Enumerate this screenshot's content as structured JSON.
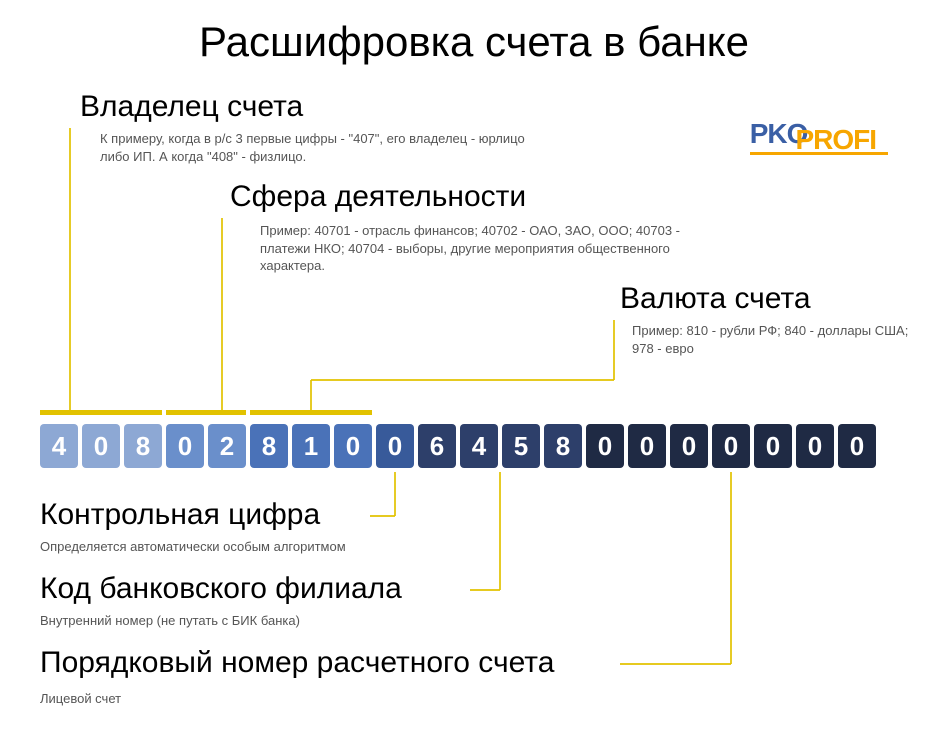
{
  "title": "Расшифровка счета в банке",
  "logo": {
    "part1": "PKO",
    "part2": "PROFI"
  },
  "sections": {
    "owner": {
      "heading": "Владелец счета",
      "desc": "К примеру, когда в р/с 3 первые цифры - \"407\", его владелец - юрлицо либо ИП. А когда \"408\" - физлицо."
    },
    "activity": {
      "heading": "Сфера деятельности",
      "desc": "Пример: 40701 - отрасль финансов; 40702 - ОАО, ЗАО, ООО; 40703 - платежи НКО; 40704 - выборы, другие мероприятия общественного характера."
    },
    "currency": {
      "heading": "Валюта счета",
      "desc": "Пример: 810 - рубли РФ; 840 - доллары США; 978 - евро"
    },
    "control": {
      "heading": "Контрольная цифра",
      "desc": "Определяется автоматически особым алгоритмом"
    },
    "branch": {
      "heading": "Код банковского филиала",
      "desc": "Внутренний номер (не путать с БИК банка)"
    },
    "serial": {
      "heading": "Порядковый номер расчетного счета",
      "desc": "Лицевой счет"
    }
  },
  "digits": [
    "4",
    "0",
    "8",
    "0",
    "2",
    "8",
    "1",
    "0",
    "0",
    "6",
    "4",
    "5",
    "8",
    "0",
    "0",
    "0",
    "0",
    "0",
    "0",
    "0"
  ],
  "colors": {
    "group1": "#8da8d4",
    "group2": "#6a8fcb",
    "group3": "#4a72b8",
    "group4": "#385a9a",
    "group5": "#2d3f6a",
    "group6": "#1f2a44",
    "accent": "#e2c200",
    "logoBlue": "#3a5fa5",
    "logoOrange": "#f7a600"
  },
  "layout": {
    "digitWidth": 38,
    "digitGap": 4,
    "rowLeft": 40,
    "rowTop": 424,
    "groups": [
      {
        "start": 0,
        "count": 3,
        "colorKey": "group1"
      },
      {
        "start": 3,
        "count": 2,
        "colorKey": "group2"
      },
      {
        "start": 5,
        "count": 3,
        "colorKey": "group3"
      },
      {
        "start": 8,
        "count": 1,
        "colorKey": "group4"
      },
      {
        "start": 9,
        "count": 4,
        "colorKey": "group5"
      },
      {
        "start": 13,
        "count": 7,
        "colorKey": "group6"
      }
    ]
  }
}
